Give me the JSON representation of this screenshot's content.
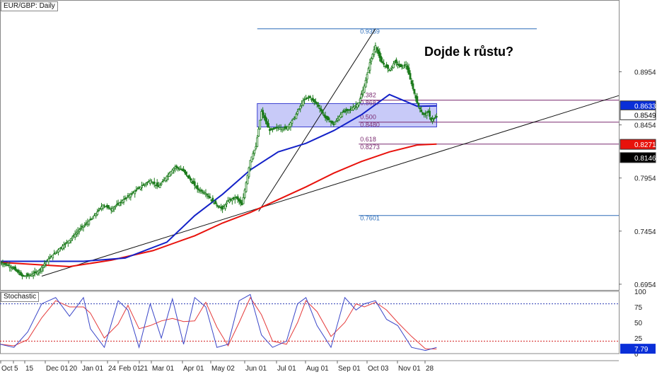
{
  "chart_data": [
    {
      "type": "candlestick",
      "title": "EUR/GBP: Daily",
      "annotation": "Dojde k růstu?",
      "y_ticks": [
        "0.6954",
        "0.7454",
        "0.7954",
        "0.8454",
        "0.8954"
      ],
      "x_ticks": [
        "Oct",
        "5",
        "15",
        "Dec 01",
        "20",
        "Jan 01",
        "24",
        "Feb 01",
        "21",
        "Mar 01",
        "Apr 01",
        "May 02",
        "Jun 01",
        "Jul 01",
        "Aug 01",
        "Sep 01",
        "Oct 03",
        "Nov 01",
        "28"
      ],
      "ylim": [
        0.69,
        0.963
      ],
      "price_path": [
        [
          0,
          0.716
        ],
        [
          8,
          0.712
        ],
        [
          16,
          0.703
        ],
        [
          22,
          0.704
        ],
        [
          28,
          0.708
        ],
        [
          34,
          0.718
        ],
        [
          42,
          0.728
        ],
        [
          50,
          0.737
        ],
        [
          58,
          0.748
        ],
        [
          66,
          0.757
        ],
        [
          74,
          0.77
        ],
        [
          80,
          0.766
        ],
        [
          88,
          0.774
        ],
        [
          96,
          0.782
        ],
        [
          102,
          0.788
        ],
        [
          108,
          0.793
        ],
        [
          114,
          0.787
        ],
        [
          120,
          0.797
        ],
        [
          126,
          0.806
        ],
        [
          132,
          0.802
        ],
        [
          136,
          0.795
        ],
        [
          142,
          0.785
        ],
        [
          148,
          0.781
        ],
        [
          154,
          0.772
        ],
        [
          160,
          0.766
        ],
        [
          164,
          0.774
        ],
        [
          170,
          0.777
        ],
        [
          174,
          0.77
        ],
        [
          180,
          0.812
        ],
        [
          184,
          0.825
        ],
        [
          188,
          0.858
        ],
        [
          194,
          0.84
        ],
        [
          200,
          0.843
        ],
        [
          206,
          0.842
        ],
        [
          212,
          0.853
        ],
        [
          218,
          0.868
        ],
        [
          222,
          0.872
        ],
        [
          228,
          0.865
        ],
        [
          234,
          0.852
        ],
        [
          240,
          0.846
        ],
        [
          246,
          0.857
        ],
        [
          252,
          0.86
        ],
        [
          258,
          0.866
        ],
        [
          262,
          0.882
        ],
        [
          266,
          0.904
        ],
        [
          270,
          0.92
        ],
        [
          274,
          0.905
        ],
        [
          280,
          0.897
        ],
        [
          284,
          0.905
        ],
        [
          288,
          0.9
        ],
        [
          292,
          0.902
        ],
        [
          296,
          0.884
        ],
        [
          300,
          0.866
        ],
        [
          304,
          0.855
        ],
        [
          308,
          0.857
        ],
        [
          310,
          0.85
        ],
        [
          314,
          0.853
        ]
      ],
      "ma_blue": [
        [
          0,
          0.717
        ],
        [
          60,
          0.717
        ],
        [
          90,
          0.72
        ],
        [
          120,
          0.735
        ],
        [
          140,
          0.76
        ],
        [
          160,
          0.78
        ],
        [
          180,
          0.803
        ],
        [
          200,
          0.82
        ],
        [
          220,
          0.828
        ],
        [
          240,
          0.84
        ],
        [
          260,
          0.855
        ],
        [
          280,
          0.874
        ],
        [
          300,
          0.863
        ],
        [
          314,
          0.8633
        ]
      ],
      "ma_red": [
        [
          0,
          0.716
        ],
        [
          50,
          0.712
        ],
        [
          80,
          0.718
        ],
        [
          110,
          0.727
        ],
        [
          140,
          0.741
        ],
        [
          160,
          0.753
        ],
        [
          180,
          0.763
        ],
        [
          200,
          0.775
        ],
        [
          220,
          0.787
        ],
        [
          240,
          0.8
        ],
        [
          260,
          0.811
        ],
        [
          280,
          0.82
        ],
        [
          300,
          0.8265
        ],
        [
          314,
          0.8273
        ]
      ],
      "trend_lines": [
        {
          "from": [
            30,
            0.703
          ],
          "to": [
            445,
            0.873
          ]
        },
        {
          "from": [
            186,
            0.764
          ],
          "to": [
            270,
            0.9359
          ]
        }
      ],
      "fib_levels": [
        {
          "ratio": "",
          "price": "0.9359",
          "value": 0.9359
        },
        {
          "ratio": "0.382",
          "price": "0.8687",
          "value": 0.8687
        },
        {
          "ratio": "0.500",
          "price": "0.8480",
          "value": 0.848
        },
        {
          "ratio": "0.618",
          "price": "0.8273",
          "value": 0.8273
        },
        {
          "ratio": "",
          "price": "0.7601",
          "value": 0.7601
        }
      ],
      "zone": {
        "top": 0.8655,
        "bottom": 0.8435
      },
      "price_labels": [
        {
          "text": "0.8633",
          "value": 0.8633,
          "bg": "#0a2fd8",
          "fg": "#ffffff"
        },
        {
          "text": "0.8549",
          "value": 0.8549,
          "bg": "#ffffff",
          "fg": "#000000"
        },
        {
          "text": "0.8271",
          "value": 0.8271,
          "bg": "#e8120c",
          "fg": "#ffffff"
        },
        {
          "text": "0.8146",
          "value": 0.8146,
          "bg": "#000000",
          "fg": "#ffffff"
        }
      ]
    },
    {
      "type": "line",
      "title": "Stochastic",
      "ylim": [
        0,
        100
      ],
      "y_ticks": [
        "100",
        "75",
        "50",
        "25",
        "0"
      ],
      "levels": [
        80,
        20
      ],
      "current_value": "7.79",
      "k_path": [
        [
          0,
          15
        ],
        [
          10,
          10
        ],
        [
          20,
          35
        ],
        [
          30,
          80
        ],
        [
          40,
          90
        ],
        [
          50,
          60
        ],
        [
          60,
          90
        ],
        [
          65,
          40
        ],
        [
          75,
          10
        ],
        [
          85,
          85
        ],
        [
          92,
          70
        ],
        [
          100,
          10
        ],
        [
          108,
          80
        ],
        [
          116,
          25
        ],
        [
          124,
          88
        ],
        [
          132,
          15
        ],
        [
          140,
          90
        ],
        [
          148,
          75
        ],
        [
          156,
          10
        ],
        [
          164,
          15
        ],
        [
          172,
          85
        ],
        [
          180,
          95
        ],
        [
          188,
          30
        ],
        [
          196,
          10
        ],
        [
          206,
          20
        ],
        [
          214,
          80
        ],
        [
          220,
          90
        ],
        [
          228,
          45
        ],
        [
          238,
          10
        ],
        [
          248,
          90
        ],
        [
          256,
          70
        ],
        [
          262,
          80
        ],
        [
          270,
          85
        ],
        [
          278,
          55
        ],
        [
          286,
          45
        ],
        [
          296,
          10
        ],
        [
          306,
          5
        ],
        [
          314,
          10
        ]
      ]
    }
  ]
}
